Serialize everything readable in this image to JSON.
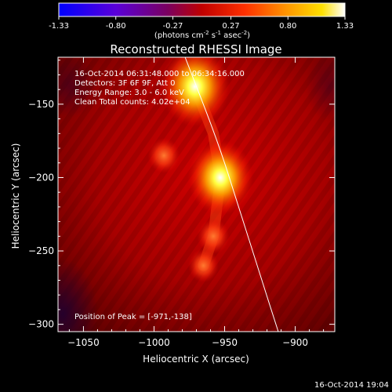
{
  "colorbar": {
    "ticks": [
      "-1.33",
      "-0.80",
      "-0.27",
      "0.27",
      "0.80",
      "1.33"
    ],
    "tick_values": [
      -1.33,
      -0.8,
      -0.27,
      0.27,
      0.8,
      1.33
    ],
    "range": [
      -1.33,
      1.33
    ],
    "units_prefix": "(photons cm",
    "units_exp1": "-2",
    "units_mid": " s",
    "units_exp2": "-1",
    "units_mid2": " asec",
    "units_exp3": "-2",
    "units_suffix": ")"
  },
  "info": {
    "time_range": "16-Oct-2014 06:31:48.000 to 06:34:16.000",
    "detectors": "Detectors: 3F 6F 9F, Att 0",
    "energy": "Energy Range: 3.0 - 6.0 keV",
    "clean": "Clean    Total counts: 4.02e+04",
    "peak": "Position of Peak = [-971,-138]"
  },
  "footer_timestamp": "16-Oct-2014 19:04",
  "chart_data": {
    "type": "heatmap",
    "title": "Reconstructed RHESSI Image",
    "xlabel": "Heliocentric X (arcsec)",
    "ylabel": "Heliocentric Y (arcsec)",
    "xlim": [
      -1068,
      -872
    ],
    "ylim": [
      -305,
      -118
    ],
    "xticks": [
      -1050,
      -1000,
      -950,
      -900
    ],
    "yticks": [
      -150,
      -200,
      -250,
      -300
    ],
    "colormap": "rainbow-hot",
    "sources": [
      {
        "x": -971,
        "y": -138,
        "peak": 1.33,
        "description": "primary peak"
      },
      {
        "x": -953,
        "y": -200,
        "peak": 1.15
      },
      {
        "x": -993,
        "y": -185,
        "peak": 0.55
      },
      {
        "x": -958,
        "y": -240,
        "peak": 0.55
      },
      {
        "x": -965,
        "y": -260,
        "peak": 0.45
      }
    ],
    "limb": [
      [
        -978,
        -118
      ],
      [
        -955,
        -175
      ],
      [
        -940,
        -220
      ],
      [
        -926,
        -263
      ],
      [
        -912,
        -305
      ]
    ],
    "grid": false,
    "legend": "none"
  }
}
